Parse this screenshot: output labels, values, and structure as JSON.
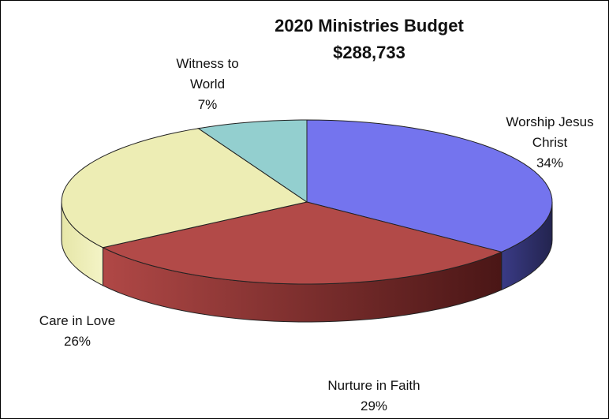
{
  "chart_data": {
    "type": "pie",
    "title": "2020 Ministries Budget",
    "subtitle": "$288,733",
    "slices": [
      {
        "label_lines": [
          "Worship Jesus",
          "Christ"
        ],
        "pct_label": "34%",
        "value": 34,
        "color": "#7474ee",
        "side_color": "#2e2f6e"
      },
      {
        "label_lines": [
          "Nurture in Faith"
        ],
        "pct_label": "29%",
        "value": 29,
        "color": "#b24a48",
        "side_color": "#5e1c1c"
      },
      {
        "label_lines": [
          "Care in Love"
        ],
        "pct_label": "26%",
        "value": 26,
        "color": "#ededb4",
        "side_color": "#d8d89c"
      },
      {
        "label_lines": [
          "Witness to",
          "World"
        ],
        "pct_label": "7%",
        "value": 7,
        "color": "#93cfcf",
        "side_color": "#6fa8a8"
      }
    ]
  }
}
